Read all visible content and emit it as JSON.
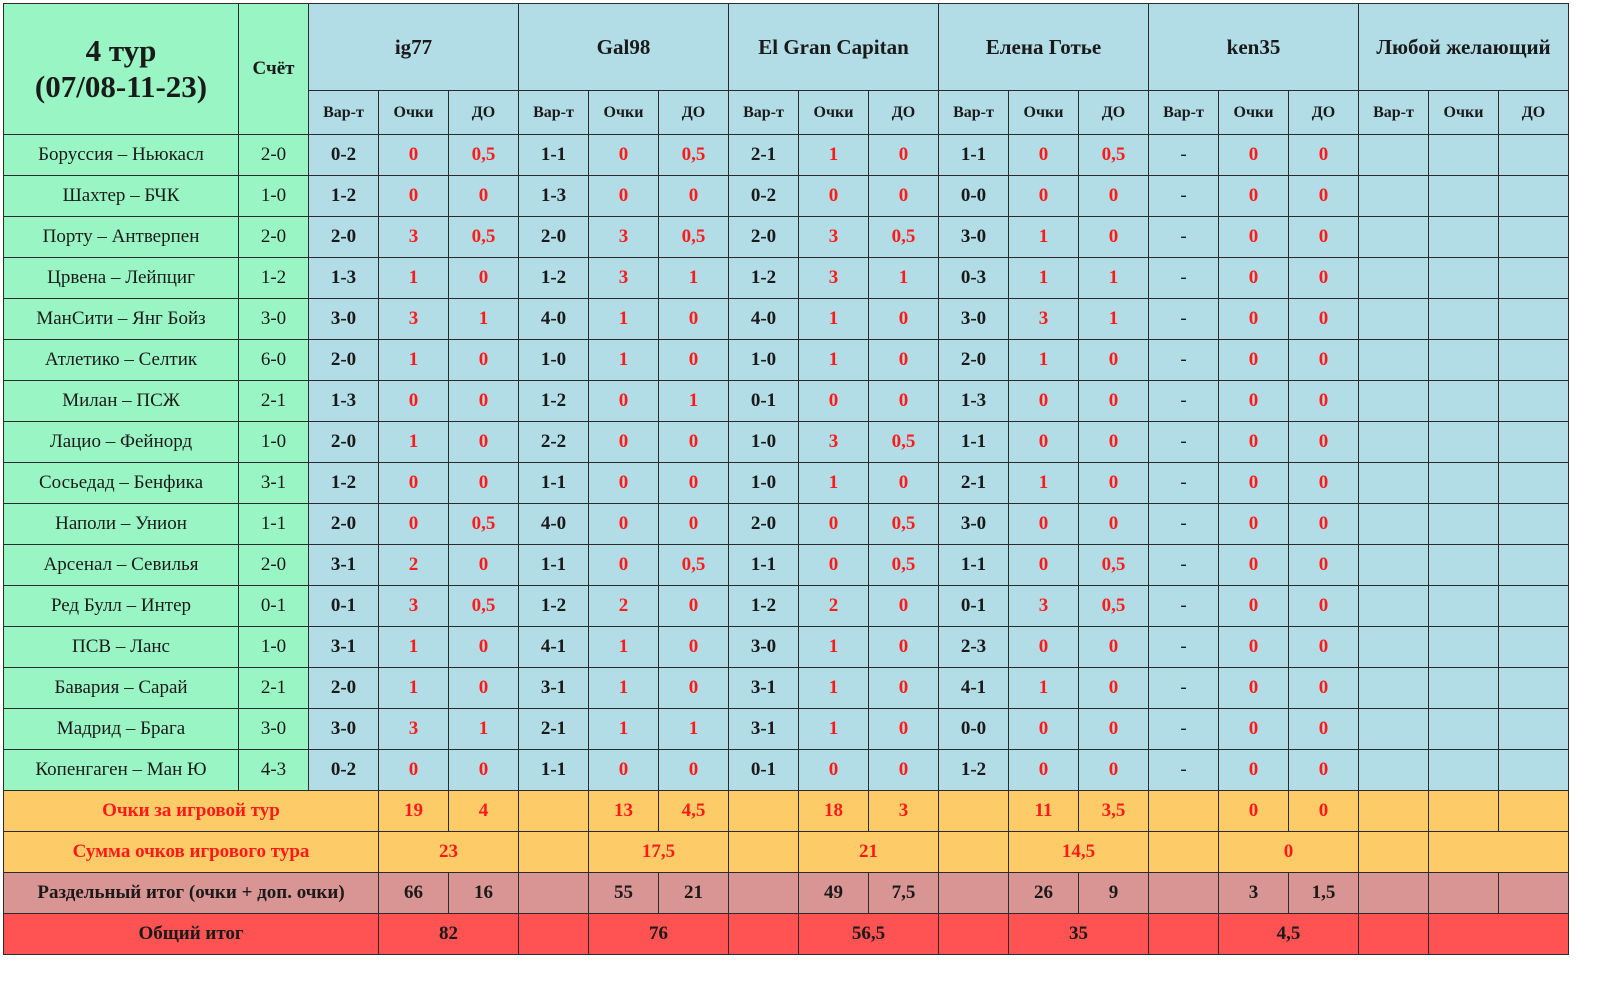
{
  "title_line1": "4 тур",
  "title_line2": "(07/08-11-23)",
  "score_header": "Счёт",
  "players": [
    "ig77",
    "Gal98",
    "El Gran Capitan",
    "Елена Готье",
    "ken35",
    "Любой желающий"
  ],
  "subheaders": [
    "Вар-т",
    "Очки",
    "ДО"
  ],
  "rows": [
    {
      "match": "Боруссия – Ньюкасл",
      "score": "2-0",
      "cells": [
        "0-2",
        "0",
        "0,5",
        "1-1",
        "0",
        "0,5",
        "2-1",
        "1",
        "0",
        "1-1",
        "0",
        "0,5",
        "-",
        "0",
        "0",
        "",
        "",
        ""
      ]
    },
    {
      "match": "Шахтер – БЧК",
      "score": "1-0",
      "cells": [
        "1-2",
        "0",
        "0",
        "1-3",
        "0",
        "0",
        "0-2",
        "0",
        "0",
        "0-0",
        "0",
        "0",
        "-",
        "0",
        "0",
        "",
        "",
        ""
      ]
    },
    {
      "match": "Порту – Антверпен",
      "score": "2-0",
      "cells": [
        "2-0",
        "3",
        "0,5",
        "2-0",
        "3",
        "0,5",
        "2-0",
        "3",
        "0,5",
        "3-0",
        "1",
        "0",
        "-",
        "0",
        "0",
        "",
        "",
        ""
      ]
    },
    {
      "match": "Црвена – Лейпциг",
      "score": "1-2",
      "cells": [
        "1-3",
        "1",
        "0",
        "1-2",
        "3",
        "1",
        "1-2",
        "3",
        "1",
        "0-3",
        "1",
        "1",
        "-",
        "0",
        "0",
        "",
        "",
        ""
      ]
    },
    {
      "match": "МанСити – Янг Бойз",
      "score": "3-0",
      "cells": [
        "3-0",
        "3",
        "1",
        "4-0",
        "1",
        "0",
        "4-0",
        "1",
        "0",
        "3-0",
        "3",
        "1",
        "-",
        "0",
        "0",
        "",
        "",
        ""
      ]
    },
    {
      "match": "Атлетико – Селтик",
      "score": "6-0",
      "cells": [
        "2-0",
        "1",
        "0",
        "1-0",
        "1",
        "0",
        "1-0",
        "1",
        "0",
        "2-0",
        "1",
        "0",
        "-",
        "0",
        "0",
        "",
        "",
        ""
      ]
    },
    {
      "match": "Милан – ПСЖ",
      "score": "2-1",
      "cells": [
        "1-3",
        "0",
        "0",
        "1-2",
        "0",
        "1",
        "0-1",
        "0",
        "0",
        "1-3",
        "0",
        "0",
        "-",
        "0",
        "0",
        "",
        "",
        ""
      ]
    },
    {
      "match": "Лацио – Фейнорд",
      "score": "1-0",
      "cells": [
        "2-0",
        "1",
        "0",
        "2-2",
        "0",
        "0",
        "1-0",
        "3",
        "0,5",
        "1-1",
        "0",
        "0",
        "-",
        "0",
        "0",
        "",
        "",
        ""
      ]
    },
    {
      "match": "Сосьедад – Бенфика",
      "score": "3-1",
      "cells": [
        "1-2",
        "0",
        "0",
        "1-1",
        "0",
        "0",
        "1-0",
        "1",
        "0",
        "2-1",
        "1",
        "0",
        "-",
        "0",
        "0",
        "",
        "",
        ""
      ]
    },
    {
      "match": "Наполи – Унион",
      "score": "1-1",
      "cells": [
        "2-0",
        "0",
        "0,5",
        "4-0",
        "0",
        "0",
        "2-0",
        "0",
        "0,5",
        "3-0",
        "0",
        "0",
        "-",
        "0",
        "0",
        "",
        "",
        ""
      ]
    },
    {
      "match": "Арсенал – Севилья",
      "score": "2-0",
      "cells": [
        "3-1",
        "2",
        "0",
        "1-1",
        "0",
        "0,5",
        "1-1",
        "0",
        "0,5",
        "1-1",
        "0",
        "0,5",
        "-",
        "0",
        "0",
        "",
        "",
        ""
      ]
    },
    {
      "match": "Ред Булл – Интер",
      "score": "0-1",
      "cells": [
        "0-1",
        "3",
        "0,5",
        "1-2",
        "2",
        "0",
        "1-2",
        "2",
        "0",
        "0-1",
        "3",
        "0,5",
        "-",
        "0",
        "0",
        "",
        "",
        ""
      ]
    },
    {
      "match": "ПСВ – Ланс",
      "score": "1-0",
      "cells": [
        "3-1",
        "1",
        "0",
        "4-1",
        "1",
        "0",
        "3-0",
        "1",
        "0",
        "2-3",
        "0",
        "0",
        "-",
        "0",
        "0",
        "",
        "",
        ""
      ]
    },
    {
      "match": "Бавария – Сарай",
      "score": "2-1",
      "cells": [
        "2-0",
        "1",
        "0",
        "3-1",
        "1",
        "0",
        "3-1",
        "1",
        "0",
        "4-1",
        "1",
        "0",
        "-",
        "0",
        "0",
        "",
        "",
        ""
      ]
    },
    {
      "match": "Мадрид – Брага",
      "score": "3-0",
      "cells": [
        "3-0",
        "3",
        "1",
        "2-1",
        "1",
        "1",
        "3-1",
        "1",
        "0",
        "0-0",
        "0",
        "0",
        "-",
        "0",
        "0",
        "",
        "",
        ""
      ]
    },
    {
      "match": "Копенгаген – Ман Ю",
      "score": "4-3",
      "cells": [
        "0-2",
        "0",
        "0",
        "1-1",
        "0",
        "0",
        "0-1",
        "0",
        "0",
        "1-2",
        "0",
        "0",
        "-",
        "0",
        "0",
        "",
        "",
        ""
      ]
    }
  ],
  "round_points": {
    "label": "Очки за игровой тур",
    "values": [
      [
        "19",
        "4"
      ],
      [
        "13",
        "4,5"
      ],
      [
        "18",
        "3"
      ],
      [
        "11",
        "3,5"
      ],
      [
        "0",
        "0"
      ],
      [
        "",
        ""
      ]
    ]
  },
  "round_sum": {
    "label": "Сумма очков игрового тура",
    "values": [
      "23",
      "17,5",
      "21",
      "14,5",
      "0",
      ""
    ]
  },
  "separate_total": {
    "label": "Раздельный итог (очки + доп. очки)",
    "values": [
      [
        "66",
        "16"
      ],
      [
        "55",
        "21"
      ],
      [
        "49",
        "7,5"
      ],
      [
        "26",
        "9"
      ],
      [
        "3",
        "1,5"
      ],
      [
        "",
        ""
      ]
    ]
  },
  "grand_total": {
    "label": "Общий итог",
    "values": [
      "82",
      "76",
      "56,5",
      "35",
      "4,5",
      ""
    ]
  },
  "colors": {
    "green": "#99f5c4",
    "blue": "#b2dde6",
    "orange": "#fecb69",
    "pink": "#d99594",
    "red": "#ff5252",
    "red_text": "#ff1a1a"
  }
}
